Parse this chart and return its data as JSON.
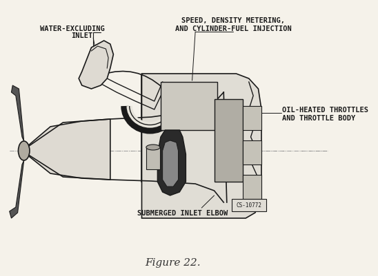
{
  "bg_color": "#f5f2ea",
  "line_color": "#1a1a1a",
  "dark_fill": "#2a2a2a",
  "mid_fill": "#555555",
  "light_fill": "#cccccc",
  "figure_caption": "Figure 22.",
  "caption_fontsize": 11,
  "labels": {
    "water_excluding": "WATER-EXCLUDING",
    "inlet": "INLET",
    "speed_density": "SPEED, DENSITY METERING,",
    "and_cylinder": "AND CYLINDER-FUEL INJECTION",
    "oil_heated": "OIL-HEATED THROTTLES",
    "and_throttle": "AND THROTTLE BODY",
    "submerged": "SUBMERGED INLET ELBOW",
    "cs_code": "CS-10772"
  },
  "label_fontsize": 7.5,
  "figsize": [
    5.48,
    4.02
  ],
  "dpi": 100
}
